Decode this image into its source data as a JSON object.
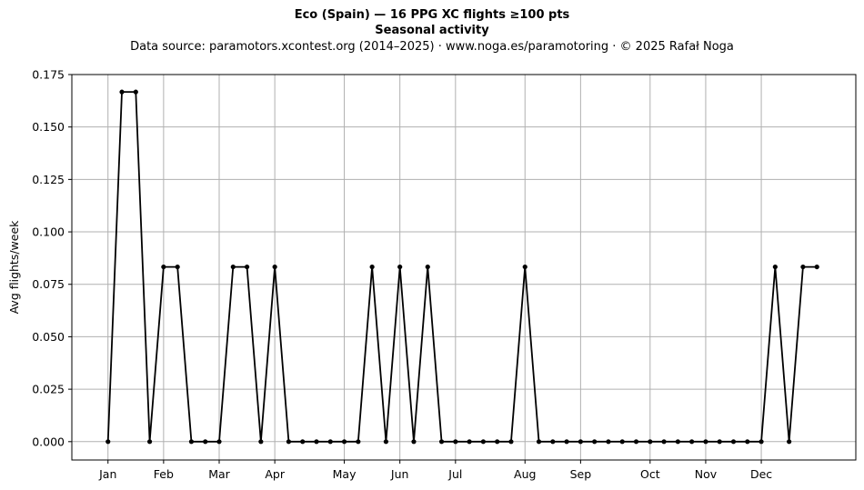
{
  "header": {
    "title_line1": "Eco (Spain)  —  16 PPG XC flights ≥100 pts",
    "title_line2": "Seasonal activity",
    "subtitle": "Data source: paramotors.xcontest.org (2014–2025)  ·  www.noga.es/paramotoring  ·  © 2025 Rafał Noga"
  },
  "chart_data": {
    "type": "line",
    "title": "Eco (Spain)  —  16 PPG XC flights ≥100 pts",
    "subtitle": "Seasonal activity",
    "xlabel": "",
    "ylabel": "Avg flights/week",
    "x_unit": "week of year",
    "xlim": [
      -2.6,
      53.8
    ],
    "ylim": [
      -0.00875,
      0.175
    ],
    "grid": true,
    "legend": "none",
    "line_color": "#000000",
    "grid_color": "#b0b0b0",
    "x_ticks": [
      {
        "label": "Jan",
        "x": 0
      },
      {
        "label": "Feb",
        "x": 4
      },
      {
        "label": "Mar",
        "x": 8
      },
      {
        "label": "Apr",
        "x": 12
      },
      {
        "label": "May",
        "x": 17
      },
      {
        "label": "Jun",
        "x": 21
      },
      {
        "label": "Jul",
        "x": 25
      },
      {
        "label": "Aug",
        "x": 30
      },
      {
        "label": "Sep",
        "x": 34
      },
      {
        "label": "Oct",
        "x": 39
      },
      {
        "label": "Nov",
        "x": 43
      },
      {
        "label": "Dec",
        "x": 47
      }
    ],
    "y_ticks": [
      {
        "label": "0.000",
        "y": 0
      },
      {
        "label": "0.025",
        "y": 0.025
      },
      {
        "label": "0.050",
        "y": 0.05
      },
      {
        "label": "0.075",
        "y": 0.075
      },
      {
        "label": "0.100",
        "y": 0.1
      },
      {
        "label": "0.125",
        "y": 0.125
      },
      {
        "label": "0.150",
        "y": 0.15
      },
      {
        "label": "0.175",
        "y": 0.175
      }
    ],
    "series": [
      {
        "x": [
          0,
          1,
          2,
          3,
          4,
          5,
          6,
          7,
          8,
          9,
          10,
          11,
          12,
          13,
          14,
          15,
          16,
          17,
          18,
          19,
          20,
          21,
          22,
          23,
          24,
          25,
          26,
          27,
          28,
          29,
          30,
          31,
          32,
          33,
          34,
          35,
          36,
          37,
          38,
          39,
          40,
          41,
          42,
          43,
          44,
          45,
          46,
          47,
          48,
          49,
          50,
          51
        ],
        "y": [
          0,
          0.1667,
          0.1667,
          0,
          0.0833,
          0.0833,
          0,
          0,
          0,
          0.0833,
          0.0833,
          0,
          0.0833,
          0,
          0,
          0,
          0,
          0,
          0,
          0.0833,
          0,
          0.0833,
          0,
          0.0833,
          0,
          0,
          0,
          0,
          0,
          0,
          0.0833,
          0,
          0,
          0,
          0,
          0,
          0,
          0,
          0,
          0,
          0,
          0,
          0,
          0,
          0,
          0,
          0,
          0,
          0.0833,
          0,
          0.0833,
          0.0833
        ]
      }
    ]
  }
}
